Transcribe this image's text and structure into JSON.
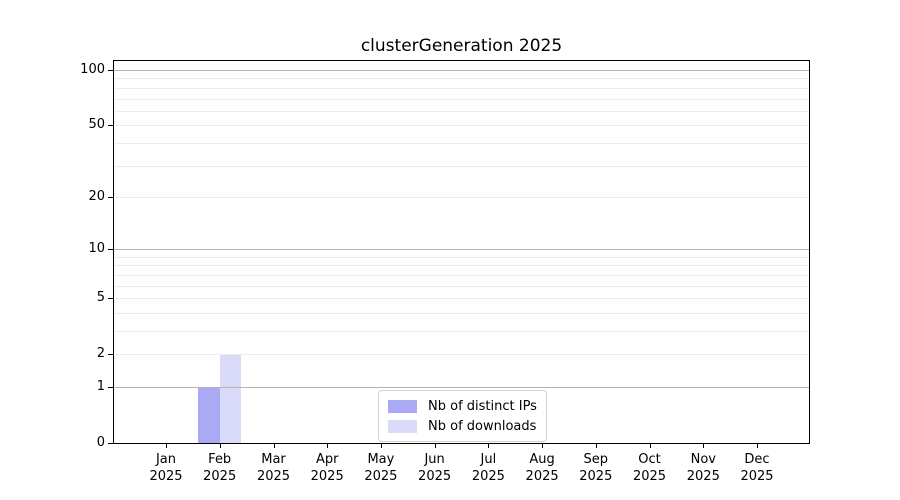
{
  "chart_data": {
    "type": "bar",
    "title": "clusterGeneration 2025",
    "categories": [
      "Jan",
      "Feb",
      "Mar",
      "Apr",
      "May",
      "Jun",
      "Jul",
      "Aug",
      "Sep",
      "Oct",
      "Nov",
      "Dec"
    ],
    "year_label": "2025",
    "series": [
      {
        "name": "Nb of distinct IPs",
        "color": "#a9a9f6",
        "values": [
          0,
          1,
          0,
          0,
          0,
          0,
          0,
          0,
          0,
          0,
          0,
          0
        ]
      },
      {
        "name": "Nb of downloads",
        "color": "#dadaf9",
        "values": [
          0,
          2,
          0,
          0,
          0,
          0,
          0,
          0,
          0,
          0,
          0,
          0
        ]
      }
    ],
    "xlabel": "",
    "ylabel": "",
    "y_axis": {
      "scale": "log1p",
      "tick_labels": [
        0,
        1,
        2,
        5,
        10,
        20,
        50,
        100
      ],
      "major_gridlines": [
        1,
        10,
        100
      ],
      "minor_gridlines": [
        2,
        3,
        4,
        5,
        6,
        7,
        8,
        9,
        20,
        30,
        40,
        50,
        60,
        70,
        80,
        90
      ],
      "top_value": 100
    },
    "grid": true,
    "legend_position": "lower-center"
  }
}
